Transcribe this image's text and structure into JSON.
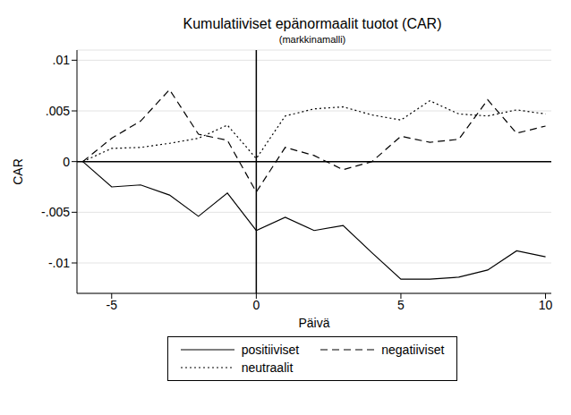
{
  "chart_data": {
    "type": "line",
    "title": "Kumulatiiviset epänormaalit tuotot (CAR)",
    "subtitle": "(markkinamalli)",
    "x_label": "Päivä",
    "y_label": "CAR",
    "x": [
      -6,
      -5,
      -4,
      -3,
      -2,
      -1,
      0,
      1,
      2,
      3,
      4,
      5,
      6,
      7,
      8,
      9,
      10
    ],
    "series": [
      {
        "name": "positiiviset",
        "color": "#000000",
        "line_style": "solid",
        "values": [
          0,
          -0.0025,
          -0.0023,
          -0.0033,
          -0.0054,
          -0.0031,
          -0.0068,
          -0.0055,
          -0.0068,
          -0.0063,
          -0.009,
          -0.0116,
          -0.0116,
          -0.0114,
          -0.0107,
          -0.0088,
          -0.0094
        ]
      },
      {
        "name": "negatiiviset",
        "color": "#000000",
        "line_style": "dashed",
        "values": [
          0,
          0.0023,
          0.004,
          0.0071,
          0.0027,
          0.0021,
          -0.003,
          0.0014,
          0.0006,
          -0.0008,
          0.0,
          0.0025,
          0.0019,
          0.0022,
          0.0061,
          0.0028,
          0.0035
        ]
      },
      {
        "name": "neutraalit",
        "color": "#000000",
        "line_style": "dotted",
        "values": [
          0,
          0.0013,
          0.0014,
          0.0018,
          0.0023,
          0.0036,
          0.0003,
          0.0045,
          0.0052,
          0.0054,
          0.0046,
          0.0041,
          0.006,
          0.0047,
          0.0045,
          0.0051,
          0.0047
        ]
      }
    ],
    "xlim": [
      -6.2,
      10.2
    ],
    "xticks": [
      -5,
      0,
      5,
      10
    ],
    "ylim": [
      -0.013,
      0.011
    ],
    "yticks": [
      {
        "value": 0.01,
        "label": ".01"
      },
      {
        "value": 0.005,
        "label": ".005"
      },
      0,
      {
        "value": -0.005,
        "label": "-.005"
      },
      {
        "value": -0.01,
        "label": "-.01"
      }
    ],
    "grid": true,
    "legend": "bottom"
  }
}
